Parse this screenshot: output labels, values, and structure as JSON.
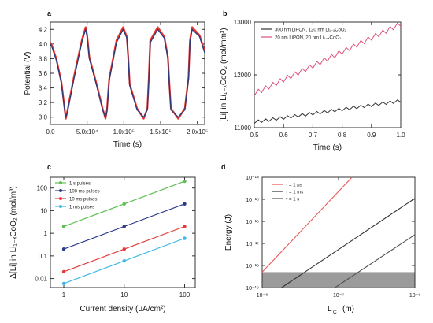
{
  "chart_data": [
    {
      "id": "a",
      "panel_label": "a",
      "type": "line",
      "xlabel": "Time  (s)",
      "ylabel": "Potential  (V)",
      "xlim": [
        0,
        210000
      ],
      "ylim": [
        2.9,
        4.3
      ],
      "xticks": [
        0,
        50000,
        100000,
        150000,
        200000
      ],
      "xtick_labels": [
        "0.0",
        "5.0x10⁴",
        "1.0x10⁵",
        "1.5x10⁵",
        "2.0x10⁵"
      ],
      "yticks": [
        3.0,
        3.2,
        3.4,
        3.6,
        3.8,
        4.0,
        4.2
      ],
      "ytick_labels": [
        "3.0",
        "3.2",
        "3.4",
        "3.6",
        "3.8",
        "4.0",
        "4.2"
      ],
      "series": [
        {
          "color": "#e8322a",
          "x": [
            0,
            2000,
            8000,
            15000,
            19000,
            21000,
            23000,
            32000,
            43000,
            48000,
            50000,
            53000,
            63000,
            71000,
            75000,
            77000,
            80000,
            90000,
            99000,
            104000,
            106000,
            108000,
            118000,
            127000,
            132000,
            134000,
            136000,
            146000,
            155000,
            160000,
            162000,
            164000,
            174000,
            183000,
            188000,
            190000,
            193000,
            203000,
            210000
          ],
          "y": [
            4.02,
            3.98,
            3.8,
            3.48,
            3.15,
            2.98,
            3.08,
            3.55,
            4.06,
            4.23,
            4.12,
            3.82,
            3.45,
            3.12,
            2.98,
            3.1,
            3.52,
            4.05,
            4.23,
            4.1,
            3.82,
            3.45,
            3.12,
            2.98,
            3.12,
            3.55,
            4.05,
            4.23,
            4.1,
            3.82,
            3.45,
            3.12,
            2.98,
            3.12,
            3.55,
            4.05,
            4.23,
            4.12,
            3.9
          ]
        },
        {
          "color": "#2b3a7a",
          "x": [
            0,
            2000,
            8000,
            15000,
            19000,
            21000,
            23000,
            32000,
            43000,
            48000,
            50000,
            53000,
            63000,
            71000,
            75000,
            77000,
            80000,
            90000,
            99000,
            104000,
            106000,
            108000,
            118000,
            127000,
            132000,
            134000,
            136000,
            146000,
            155000,
            160000,
            162000,
            164000,
            174000,
            183000,
            188000,
            190000,
            193000,
            203000,
            210000
          ],
          "y": [
            4.0,
            3.96,
            3.78,
            3.46,
            3.13,
            3.0,
            3.06,
            3.52,
            4.03,
            4.2,
            4.1,
            3.8,
            3.43,
            3.1,
            3.0,
            3.08,
            3.5,
            4.02,
            4.2,
            4.08,
            3.8,
            3.43,
            3.1,
            3.0,
            3.1,
            3.52,
            4.02,
            4.2,
            4.08,
            3.8,
            3.43,
            3.1,
            3.0,
            3.1,
            3.52,
            4.02,
            4.2,
            4.1,
            3.88
          ]
        }
      ]
    },
    {
      "id": "b",
      "panel_label": "b",
      "type": "line",
      "xlabel": "Time  (s)",
      "ylabel": "[Li] in Li₁₋ₓCoO₂  (mol/mm³)",
      "xlim": [
        0.5,
        1.0
      ],
      "ylim": [
        11000,
        13000
      ],
      "xticks": [
        0.5,
        0.6,
        0.7,
        0.8,
        0.9,
        1.0
      ],
      "xtick_labels": [
        "0.5",
        "0.6",
        "0.7",
        "0.8",
        "0.9",
        "1.0"
      ],
      "yticks": [
        11000,
        12000,
        13000
      ],
      "ytick_labels": [
        "11000",
        "12000",
        "13000"
      ],
      "legend": [
        "300 nm LiPON, 120 nm Li₁₋ₓCoO₂",
        "20 nm LiPON, 20 nm Li₁₋ₓCoO₂"
      ],
      "series": [
        {
          "name": "300 nm LiPON, 120 nm Li₁₋ₓCoO₂",
          "color": "#333333",
          "start": 11080,
          "end": 11480,
          "teeth": 20,
          "amp": 55
        },
        {
          "name": "20 nm LiPON, 20 nm Li₁₋ₓCoO₂",
          "color": "#e0507a",
          "start": 11600,
          "end": 12920,
          "teeth": 20,
          "amp": 90
        }
      ]
    },
    {
      "id": "c",
      "panel_label": "c",
      "type": "scatter",
      "xlabel": "Current density  (μA/cm²)",
      "ylabel": "Δ[Li] in Li₁₋ₓCoO₂  (mol/m³)",
      "xscale": "log",
      "yscale": "log",
      "xlim": [
        0.6,
        150
      ],
      "ylim": [
        0.004,
        300
      ],
      "xticks": [
        1,
        10,
        100
      ],
      "xtick_labels": [
        "1",
        "10",
        "100"
      ],
      "yticks": [
        0.01,
        0.1,
        1,
        10,
        100
      ],
      "ytick_labels": [
        "0.01",
        "0.1",
        "1",
        "10",
        "100"
      ],
      "legend": [
        "1 s pulses",
        "100 ms pulses",
        "10 ms pulses",
        "1 ms pulses"
      ],
      "series": [
        {
          "name": "1 s pulses",
          "color": "#5cbf50",
          "x": [
            1,
            10,
            100
          ],
          "y": [
            2,
            20,
            200
          ]
        },
        {
          "name": "100 ms pulses",
          "color": "#2e3a8c",
          "x": [
            1,
            10,
            100
          ],
          "y": [
            0.2,
            2,
            20
          ]
        },
        {
          "name": "10 ms pulses",
          "color": "#e33b3b",
          "x": [
            1,
            10,
            100
          ],
          "y": [
            0.02,
            0.2,
            2
          ]
        },
        {
          "name": "1 ms pulses",
          "color": "#3fb7e8",
          "x": [
            1,
            10,
            100
          ],
          "y": [
            0.006,
            0.06,
            0.6
          ]
        }
      ]
    },
    {
      "id": "d",
      "panel_label": "d",
      "type": "line",
      "xlabel": "L",
      "xlabel_sub": "C",
      "xlabel_unit": "(m)",
      "ylabel": "Energy  (J)",
      "xscale": "log",
      "yscale": "log",
      "xlim": [
        1e-08,
        1e-06
      ],
      "ylim": [
        1e-19,
        1e-14
      ],
      "xticks": [
        1e-08,
        1e-07,
        1e-06
      ],
      "xtick_labels": [
        "10⁻⁸",
        "10⁻⁷",
        "10⁻⁶"
      ],
      "yticks": [
        1e-19,
        1e-18,
        1e-17,
        1e-16,
        1e-15,
        1e-14
      ],
      "ytick_labels": [
        "10⁻¹⁹",
        "10⁻¹⁸",
        "10⁻¹⁷",
        "10⁻¹⁶",
        "10⁻¹⁵",
        "10⁻¹⁴"
      ],
      "shaded_band": [
        1e-19,
        5e-19
      ],
      "shaded_color": "#8a8a8a",
      "legend": [
        "τ = 1 μs",
        "τ = 1 ms",
        "τ = 1 s"
      ],
      "series": [
        {
          "name": "τ = 1 μs",
          "color": "#e8585a",
          "x": [
            1e-08,
            1.5e-07
          ],
          "y": [
            5e-19,
            1e-14
          ]
        },
        {
          "name": "τ = 1 ms",
          "color": "#333333",
          "x": [
            1.8e-08,
            1e-06
          ],
          "y": [
            1e-19,
            1.1e-15
          ]
        },
        {
          "name": "τ = 1 s",
          "color": "#555555",
          "x": [
            9e-08,
            1e-06
          ],
          "y": [
            1e-19,
            2.5e-17
          ]
        }
      ]
    }
  ]
}
